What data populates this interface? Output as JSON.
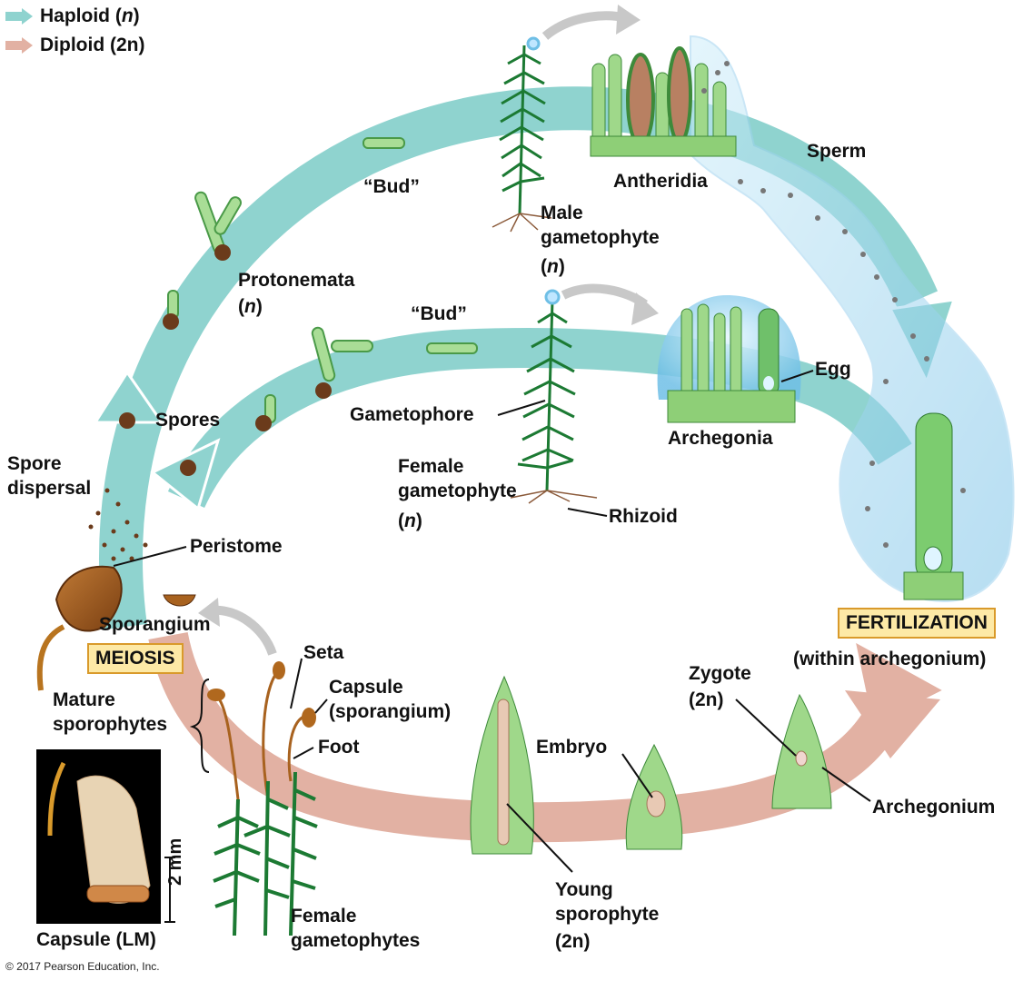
{
  "legend": {
    "haploid": {
      "label": "Haploid",
      "ploidy": "n",
      "color": "#8fd3cf"
    },
    "diploid": {
      "label": "Diploid",
      "ploidy": "2n",
      "color": "#e2b1a3"
    }
  },
  "labels": {
    "bud_top": "“Bud”",
    "bud_mid": "“Bud”",
    "antheridia": "Antheridia",
    "sperm": "Sperm",
    "male_gametophyte": "Male\ngametophyte",
    "male_ploidy": "n",
    "protonemata": "Protonemata",
    "protonemata_ploidy": "n",
    "egg": "Egg",
    "archegonia": "Archegonia",
    "gametophore": "Gametophore",
    "spores": "Spores",
    "spore_dispersal": "Spore\ndispersal",
    "female_gametophyte": "Female\ngametophyte",
    "female_ploidy": "n",
    "rhizoid": "Rhizoid",
    "peristome": "Peristome",
    "sporangium": "Sporangium",
    "meiosis": "MEIOSIS",
    "fertilization": "FERTILIZATION",
    "within_archegonium": "(within archegonium)",
    "seta": "Seta",
    "capsule_sporangium": "Capsule\n(sporangium)",
    "foot": "Foot",
    "mature_sporophytes": "Mature\nsporophytes",
    "zygote": "Zygote",
    "zygote_ploidy": "2n",
    "embryo": "Embryo",
    "archegonium": "Archegonium",
    "young_sporophyte": "Young\nsporophyte",
    "young_ploidy": "2n",
    "female_gametophytes": "Female\ngametophytes",
    "capsule_lm": "Capsule (LM)",
    "scale": "2 mm"
  },
  "copyright": "© 2017 Pearson Education, Inc."
}
